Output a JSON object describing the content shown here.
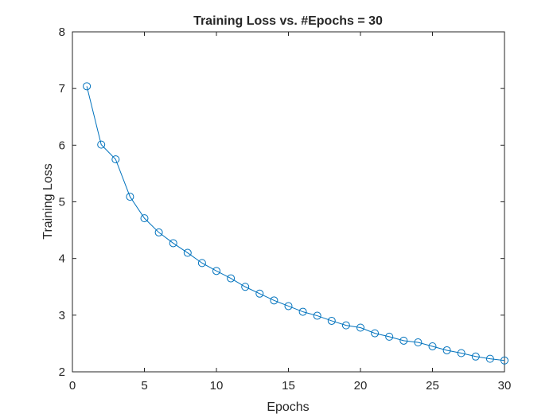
{
  "chart_data": {
    "type": "line",
    "title": "Training Loss vs. #Epochs = 30",
    "xlabel": "Epochs",
    "ylabel": "Training Loss",
    "xlim": [
      0,
      30
    ],
    "ylim": [
      2,
      8
    ],
    "xticks": [
      0,
      5,
      10,
      15,
      20,
      25,
      30
    ],
    "yticks": [
      2,
      3,
      4,
      5,
      6,
      7,
      8
    ],
    "grid": false,
    "marker": "circle",
    "line_color": "#0072BD",
    "axis_color": "#262626",
    "series": [
      {
        "x": [
          1,
          2,
          3,
          4,
          5,
          6,
          7,
          8,
          9,
          10,
          11,
          12,
          13,
          14,
          15,
          16,
          17,
          18,
          19,
          20,
          21,
          22,
          23,
          24,
          25,
          26,
          27,
          28,
          29,
          30
        ],
        "values": [
          7.04,
          6.01,
          5.75,
          5.09,
          4.71,
          4.46,
          4.27,
          4.1,
          3.92,
          3.78,
          3.65,
          3.5,
          3.38,
          3.26,
          3.16,
          3.06,
          2.99,
          2.9,
          2.82,
          2.78,
          2.68,
          2.62,
          2.55,
          2.52,
          2.45,
          2.38,
          2.33,
          2.27,
          2.23,
          2.2
        ]
      }
    ]
  }
}
